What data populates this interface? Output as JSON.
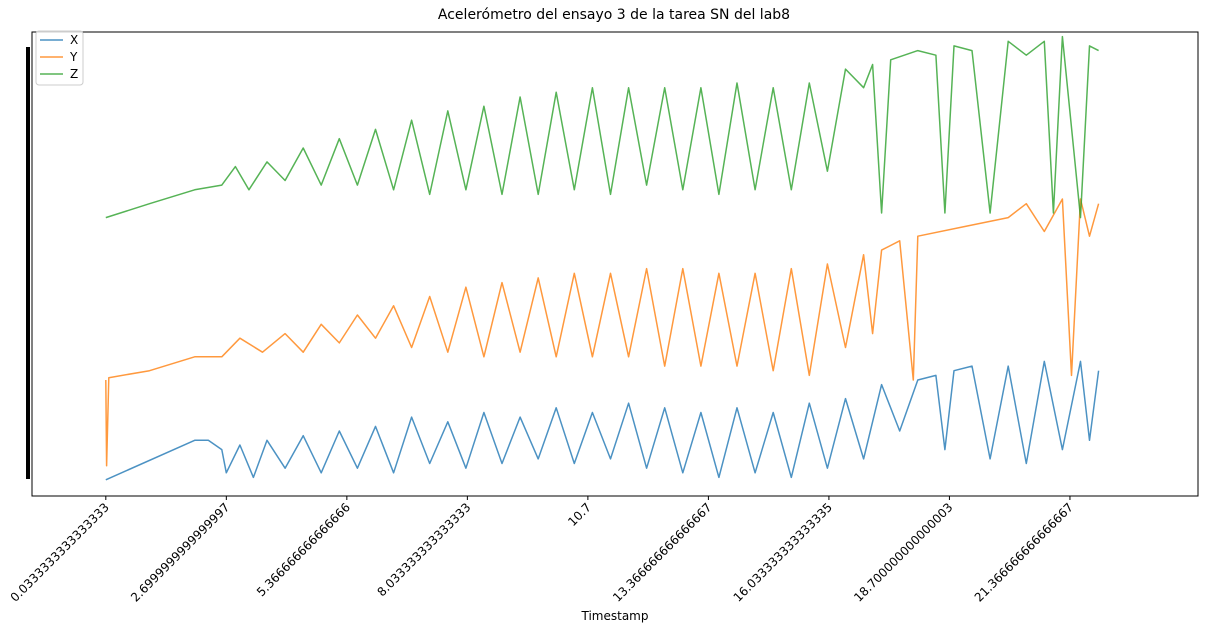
{
  "chart_data": {
    "type": "line",
    "title": "Acelerómetro del ensayo 3 de la tarea SN del lab8",
    "xlabel": "Timestamp",
    "ylabel": "",
    "xlim": [
      -1.6,
      24.2
    ],
    "ylim": [
      0,
      1
    ],
    "grid": false,
    "legend_position": "top-left",
    "x_tick_labels": [
      "0.0333333333333333",
      "2.6999999999999997",
      "5.366666666666666",
      "8.033333333333333",
      "10.7",
      "13.366666666666667",
      "16.033333333333335",
      "18.700000000000003",
      "21.366666666666667"
    ],
    "x_tick_values": [
      0.0333,
      2.7,
      5.3667,
      8.0333,
      10.7,
      13.3667,
      16.0333,
      18.7,
      21.3667
    ],
    "series": [
      {
        "name": "X",
        "color": "#1f77b4",
        "x_start": 0.0333,
        "x_end": 22.0,
        "points": [
          [
            0.033,
            0.035
          ],
          [
            2.0,
            0.12
          ],
          [
            2.3,
            0.12
          ],
          [
            2.6,
            0.1
          ],
          [
            2.7,
            0.05
          ],
          [
            3.0,
            0.11
          ],
          [
            3.3,
            0.04
          ],
          [
            3.6,
            0.12
          ],
          [
            4.0,
            0.06
          ],
          [
            4.4,
            0.13
          ],
          [
            4.8,
            0.05
          ],
          [
            5.2,
            0.14
          ],
          [
            5.6,
            0.06
          ],
          [
            6.0,
            0.15
          ],
          [
            6.4,
            0.05
          ],
          [
            6.8,
            0.17
          ],
          [
            7.2,
            0.07
          ],
          [
            7.6,
            0.16
          ],
          [
            8.0,
            0.06
          ],
          [
            8.4,
            0.18
          ],
          [
            8.8,
            0.07
          ],
          [
            9.2,
            0.17
          ],
          [
            9.6,
            0.08
          ],
          [
            10.0,
            0.19
          ],
          [
            10.4,
            0.07
          ],
          [
            10.8,
            0.18
          ],
          [
            11.2,
            0.08
          ],
          [
            11.6,
            0.2
          ],
          [
            12.0,
            0.06
          ],
          [
            12.4,
            0.19
          ],
          [
            12.8,
            0.05
          ],
          [
            13.2,
            0.18
          ],
          [
            13.6,
            0.04
          ],
          [
            14.0,
            0.19
          ],
          [
            14.4,
            0.05
          ],
          [
            14.8,
            0.18
          ],
          [
            15.2,
            0.04
          ],
          [
            15.6,
            0.2
          ],
          [
            16.0,
            0.06
          ],
          [
            16.4,
            0.21
          ],
          [
            16.8,
            0.08
          ],
          [
            17.2,
            0.24
          ],
          [
            17.6,
            0.14
          ],
          [
            18.0,
            0.25
          ],
          [
            18.4,
            0.26
          ],
          [
            18.6,
            0.1
          ],
          [
            18.8,
            0.27
          ],
          [
            19.2,
            0.28
          ],
          [
            19.6,
            0.08
          ],
          [
            20.0,
            0.28
          ],
          [
            20.4,
            0.07
          ],
          [
            20.8,
            0.29
          ],
          [
            21.2,
            0.1
          ],
          [
            21.6,
            0.29
          ],
          [
            21.8,
            0.12
          ],
          [
            22.0,
            0.27
          ]
        ]
      },
      {
        "name": "Y",
        "color": "#ff7f0e",
        "x_start": 0.0333,
        "x_end": 22.0,
        "points": [
          [
            0.033,
            0.25
          ],
          [
            0.05,
            0.065
          ],
          [
            0.1,
            0.255
          ],
          [
            1.0,
            0.27
          ],
          [
            2.0,
            0.3
          ],
          [
            2.6,
            0.3
          ],
          [
            3.0,
            0.34
          ],
          [
            3.5,
            0.31
          ],
          [
            4.0,
            0.35
          ],
          [
            4.4,
            0.31
          ],
          [
            4.8,
            0.37
          ],
          [
            5.2,
            0.33
          ],
          [
            5.6,
            0.39
          ],
          [
            6.0,
            0.34
          ],
          [
            6.4,
            0.41
          ],
          [
            6.8,
            0.32
          ],
          [
            7.2,
            0.43
          ],
          [
            7.6,
            0.31
          ],
          [
            8.0,
            0.45
          ],
          [
            8.4,
            0.3
          ],
          [
            8.8,
            0.46
          ],
          [
            9.2,
            0.31
          ],
          [
            9.6,
            0.47
          ],
          [
            10.0,
            0.3
          ],
          [
            10.4,
            0.48
          ],
          [
            10.8,
            0.3
          ],
          [
            11.2,
            0.48
          ],
          [
            11.6,
            0.3
          ],
          [
            12.0,
            0.49
          ],
          [
            12.4,
            0.28
          ],
          [
            12.8,
            0.49
          ],
          [
            13.2,
            0.28
          ],
          [
            13.6,
            0.48
          ],
          [
            14.0,
            0.28
          ],
          [
            14.4,
            0.48
          ],
          [
            14.8,
            0.27
          ],
          [
            15.2,
            0.49
          ],
          [
            15.6,
            0.26
          ],
          [
            16.0,
            0.5
          ],
          [
            16.4,
            0.32
          ],
          [
            16.8,
            0.52
          ],
          [
            17.0,
            0.35
          ],
          [
            17.2,
            0.53
          ],
          [
            17.6,
            0.55
          ],
          [
            17.9,
            0.25
          ],
          [
            18.0,
            0.56
          ],
          [
            19.0,
            0.58
          ],
          [
            20.0,
            0.6
          ],
          [
            20.4,
            0.63
          ],
          [
            20.8,
            0.57
          ],
          [
            21.2,
            0.64
          ],
          [
            21.4,
            0.26
          ],
          [
            21.6,
            0.64
          ],
          [
            21.8,
            0.56
          ],
          [
            22.0,
            0.63
          ]
        ]
      },
      {
        "name": "Z",
        "color": "#2ca02c",
        "x_start": 0.0333,
        "x_end": 22.0,
        "points": [
          [
            0.033,
            0.6
          ],
          [
            1.0,
            0.63
          ],
          [
            2.0,
            0.66
          ],
          [
            2.6,
            0.67
          ],
          [
            2.9,
            0.71
          ],
          [
            3.2,
            0.66
          ],
          [
            3.6,
            0.72
          ],
          [
            4.0,
            0.68
          ],
          [
            4.4,
            0.75
          ],
          [
            4.8,
            0.67
          ],
          [
            5.2,
            0.77
          ],
          [
            5.6,
            0.67
          ],
          [
            6.0,
            0.79
          ],
          [
            6.4,
            0.66
          ],
          [
            6.8,
            0.81
          ],
          [
            7.2,
            0.65
          ],
          [
            7.6,
            0.83
          ],
          [
            8.0,
            0.66
          ],
          [
            8.4,
            0.84
          ],
          [
            8.8,
            0.65
          ],
          [
            9.2,
            0.86
          ],
          [
            9.6,
            0.65
          ],
          [
            10.0,
            0.87
          ],
          [
            10.4,
            0.66
          ],
          [
            10.8,
            0.88
          ],
          [
            11.2,
            0.65
          ],
          [
            11.6,
            0.88
          ],
          [
            12.0,
            0.67
          ],
          [
            12.4,
            0.88
          ],
          [
            12.8,
            0.66
          ],
          [
            13.2,
            0.88
          ],
          [
            13.6,
            0.65
          ],
          [
            14.0,
            0.89
          ],
          [
            14.4,
            0.66
          ],
          [
            14.8,
            0.88
          ],
          [
            15.2,
            0.66
          ],
          [
            15.6,
            0.89
          ],
          [
            16.0,
            0.7
          ],
          [
            16.4,
            0.92
          ],
          [
            16.8,
            0.88
          ],
          [
            17.0,
            0.93
          ],
          [
            17.2,
            0.61
          ],
          [
            17.4,
            0.94
          ],
          [
            18.0,
            0.96
          ],
          [
            18.4,
            0.95
          ],
          [
            18.6,
            0.61
          ],
          [
            18.8,
            0.97
          ],
          [
            19.2,
            0.96
          ],
          [
            19.6,
            0.61
          ],
          [
            20.0,
            0.98
          ],
          [
            20.4,
            0.95
          ],
          [
            20.8,
            0.98
          ],
          [
            21.0,
            0.61
          ],
          [
            21.2,
            0.99
          ],
          [
            21.6,
            0.6
          ],
          [
            21.8,
            0.97
          ],
          [
            22.0,
            0.96
          ]
        ]
      }
    ]
  }
}
